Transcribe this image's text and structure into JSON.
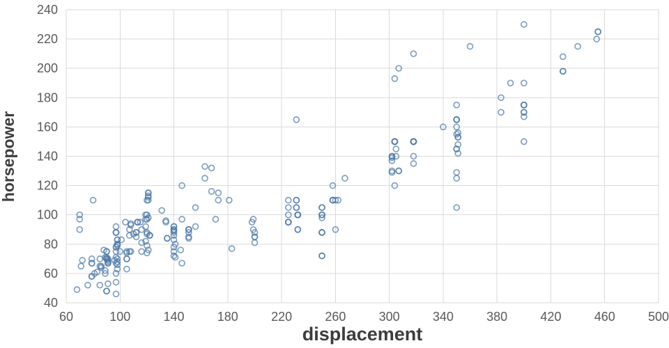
{
  "chart_data": {
    "type": "scatter",
    "title": "",
    "xlabel": "displacement",
    "ylabel": "horsepower",
    "xlim": [
      60,
      500
    ],
    "ylim": [
      40,
      240
    ],
    "x_ticks": [
      60,
      100,
      140,
      180,
      220,
      260,
      300,
      340,
      380,
      420,
      460,
      500
    ],
    "y_ticks": [
      40,
      60,
      80,
      100,
      120,
      140,
      160,
      180,
      200,
      220,
      240
    ],
    "grid": true,
    "legend": "none",
    "marker": {
      "shape": "open-circle",
      "radius": 4,
      "color": "#4c78a8",
      "opacity": 0.7
    },
    "points": [
      [
        307,
        130
      ],
      [
        350,
        165
      ],
      [
        318,
        150
      ],
      [
        304,
        150
      ],
      [
        302,
        140
      ],
      [
        429,
        198
      ],
      [
        454,
        220
      ],
      [
        440,
        215
      ],
      [
        455,
        225
      ],
      [
        390,
        190
      ],
      [
        383,
        170
      ],
      [
        340,
        160
      ],
      [
        400,
        150
      ],
      [
        455,
        225
      ],
      [
        113,
        95
      ],
      [
        198,
        95
      ],
      [
        199,
        97
      ],
      [
        200,
        85
      ],
      [
        97,
        88
      ],
      [
        97,
        46
      ],
      [
        110,
        87
      ],
      [
        107,
        90
      ],
      [
        104,
        95
      ],
      [
        121,
        113
      ],
      [
        199,
        90
      ],
      [
        360,
        215
      ],
      [
        307,
        200
      ],
      [
        318,
        210
      ],
      [
        304,
        193
      ],
      [
        97,
        88
      ],
      [
        140,
        90
      ],
      [
        113,
        95
      ],
      [
        232,
        100
      ],
      [
        225,
        105
      ],
      [
        250,
        100
      ],
      [
        250,
        88
      ],
      [
        232,
        100
      ],
      [
        350,
        165
      ],
      [
        400,
        175
      ],
      [
        351,
        153
      ],
      [
        318,
        150
      ],
      [
        383,
        180
      ],
      [
        400,
        170
      ],
      [
        400,
        175
      ],
      [
        258,
        110
      ],
      [
        140,
        72
      ],
      [
        250,
        100
      ],
      [
        250,
        88
      ],
      [
        122,
        86
      ],
      [
        116,
        90
      ],
      [
        79,
        70
      ],
      [
        88,
        76
      ],
      [
        71,
        65
      ],
      [
        72,
        69
      ],
      [
        97,
        60
      ],
      [
        91,
        70
      ],
      [
        113,
        95
      ],
      [
        98,
        80
      ],
      [
        97,
        54
      ],
      [
        140,
        90
      ],
      [
        122,
        86
      ],
      [
        350,
        165
      ],
      [
        400,
        175
      ],
      [
        318,
        150
      ],
      [
        351,
        153
      ],
      [
        304,
        150
      ],
      [
        429,
        208
      ],
      [
        350,
        155
      ],
      [
        350,
        160
      ],
      [
        400,
        190
      ],
      [
        70,
        97
      ],
      [
        304,
        150
      ],
      [
        307,
        130
      ],
      [
        302,
        140
      ],
      [
        318,
        150
      ],
      [
        121,
        112
      ],
      [
        121,
        76
      ],
      [
        120,
        87
      ],
      [
        96,
        69
      ],
      [
        122,
        86
      ],
      [
        97,
        92
      ],
      [
        120,
        97
      ],
      [
        98,
        80
      ],
      [
        97,
        88
      ],
      [
        350,
        175
      ],
      [
        304,
        150
      ],
      [
        350,
        145
      ],
      [
        302,
        137
      ],
      [
        318,
        150
      ],
      [
        429,
        198
      ],
      [
        200,
        85
      ],
      [
        232,
        100
      ],
      [
        250,
        88
      ],
      [
        350,
        129
      ],
      [
        400,
        167
      ],
      [
        351,
        156
      ],
      [
        318,
        150
      ],
      [
        231,
        105
      ],
      [
        250,
        100
      ],
      [
        258,
        110
      ],
      [
        225,
        95
      ],
      [
        231,
        105
      ],
      [
        262,
        110
      ],
      [
        302,
        139
      ],
      [
        97,
        75
      ],
      [
        140,
        83
      ],
      [
        232,
        100
      ],
      [
        140,
        78
      ],
      [
        134,
        96
      ],
      [
        90,
        71
      ],
      [
        119,
        97
      ],
      [
        171,
        97
      ],
      [
        90,
        70
      ],
      [
        232,
        90
      ],
      [
        115,
        95
      ],
      [
        120,
        88
      ],
      [
        121,
        98
      ],
      [
        121,
        115
      ],
      [
        91,
        53
      ],
      [
        107,
        86
      ],
      [
        116,
        81
      ],
      [
        140,
        92
      ],
      [
        98,
        79
      ],
      [
        101,
        83
      ],
      [
        305,
        140
      ],
      [
        318,
        150
      ],
      [
        304,
        150
      ],
      [
        98,
        83
      ],
      [
        79,
        67
      ],
      [
        97,
        78
      ],
      [
        76,
        52
      ],
      [
        83,
        61
      ],
      [
        90,
        75
      ],
      [
        90,
        75
      ],
      [
        116,
        75
      ],
      [
        120,
        100
      ],
      [
        108,
        94
      ],
      [
        79,
        67
      ],
      [
        225,
        95
      ],
      [
        250,
        105
      ],
      [
        250,
        72
      ],
      [
        250,
        72
      ],
      [
        400,
        170
      ],
      [
        350,
        145
      ],
      [
        318,
        150
      ],
      [
        351,
        148
      ],
      [
        231,
        110
      ],
      [
        250,
        105
      ],
      [
        258,
        110
      ],
      [
        225,
        95
      ],
      [
        231,
        110
      ],
      [
        400,
        230
      ],
      [
        98,
        83
      ],
      [
        140,
        75
      ],
      [
        90,
        70
      ],
      [
        85,
        70
      ],
      [
        350,
        125
      ],
      [
        304,
        120
      ],
      [
        350,
        105
      ],
      [
        200,
        88
      ],
      [
        200,
        81
      ],
      [
        225,
        100
      ],
      [
        232,
        90
      ],
      [
        231,
        165
      ],
      [
        258,
        120
      ],
      [
        267,
        125
      ],
      [
        260,
        110
      ],
      [
        260,
        90
      ],
      [
        305,
        145
      ],
      [
        302,
        129
      ],
      [
        318,
        135
      ],
      [
        98,
        68
      ],
      [
        98,
        66
      ],
      [
        98,
        63
      ],
      [
        98,
        70
      ],
      [
        105,
        74
      ],
      [
        105,
        70
      ],
      [
        105,
        70
      ],
      [
        105,
        63
      ],
      [
        105,
        75
      ],
      [
        100,
        75
      ],
      [
        107,
        75
      ],
      [
        108,
        75
      ],
      [
        119,
        92
      ],
      [
        119,
        82
      ],
      [
        120,
        74
      ],
      [
        120,
        79
      ],
      [
        141,
        80
      ],
      [
        145,
        76
      ],
      [
        146,
        67
      ],
      [
        146,
        97
      ],
      [
        146,
        120
      ],
      [
        151,
        90
      ],
      [
        151,
        88
      ],
      [
        151,
        84
      ],
      [
        151,
        85
      ],
      [
        151,
        90
      ],
      [
        156,
        105
      ],
      [
        156,
        92
      ],
      [
        173,
        110
      ],
      [
        173,
        115
      ],
      [
        168,
        116
      ],
      [
        168,
        132
      ],
      [
        163,
        125
      ],
      [
        163,
        133
      ],
      [
        183,
        77
      ],
      [
        181,
        110
      ],
      [
        135,
        84
      ],
      [
        131,
        103
      ],
      [
        121,
        110
      ],
      [
        121,
        115
      ],
      [
        89,
        71
      ],
      [
        89,
        62
      ],
      [
        89,
        60
      ],
      [
        86,
        65
      ],
      [
        86,
        64
      ],
      [
        85,
        65
      ],
      [
        85,
        52
      ],
      [
        81,
        60
      ],
      [
        79,
        58
      ],
      [
        79,
        58
      ],
      [
        68,
        49
      ],
      [
        91,
        67
      ],
      [
        91,
        67
      ],
      [
        91,
        68
      ],
      [
        91,
        69
      ],
      [
        90,
        48
      ],
      [
        90,
        48
      ],
      [
        97,
        67
      ],
      [
        97,
        71
      ],
      [
        112,
        88
      ],
      [
        112,
        88
      ],
      [
        112,
        85
      ],
      [
        135,
        84
      ],
      [
        151,
        90
      ],
      [
        140,
        86
      ],
      [
        140,
        88
      ],
      [
        140,
        89
      ],
      [
        140,
        92
      ],
      [
        141,
        71
      ],
      [
        97,
        78
      ],
      [
        134,
        95
      ],
      [
        120,
        110
      ],
      [
        119,
        100
      ],
      [
        108,
        93
      ],
      [
        250,
        98
      ],
      [
        225,
        110
      ],
      [
        302,
        130
      ],
      [
        351,
        142
      ],
      [
        318,
        140
      ],
      [
        70,
        90
      ],
      [
        70,
        100
      ],
      [
        80,
        110
      ]
    ],
    "colors": {
      "grid": "#dadada",
      "tick_text": "#595959",
      "axis_title_text": "#3d3d3d",
      "marker_stroke": "#4c78a8",
      "background": "#ffffff"
    }
  }
}
